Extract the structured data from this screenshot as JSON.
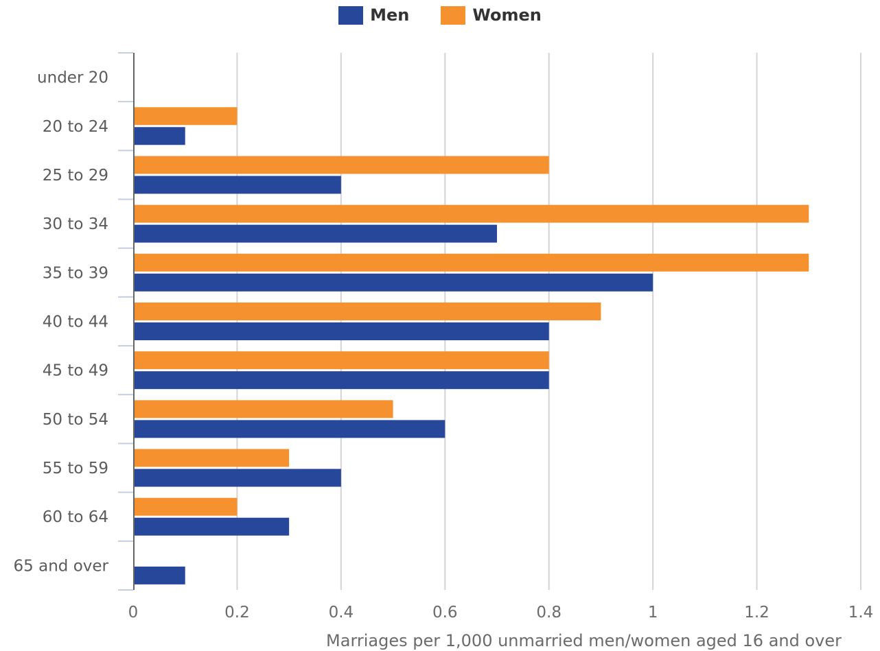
{
  "chart_data": {
    "type": "bar",
    "orientation": "horizontal",
    "categories": [
      "under 20",
      "20 to 24",
      "25 to 29",
      "30 to 34",
      "35 to 39",
      "40 to 44",
      "45 to 49",
      "50 to 54",
      "55 to 59",
      "60 to 64",
      "65 and over"
    ],
    "series": [
      {
        "name": "Women",
        "color": "#f5922f",
        "values": [
          0,
          0.2,
          0.8,
          1.3,
          1.3,
          0.9,
          0.8,
          0.5,
          0.3,
          0.2,
          0
        ]
      },
      {
        "name": "Men",
        "color": "#27489a",
        "values": [
          0,
          0.1,
          0.4,
          0.7,
          1.0,
          0.8,
          0.8,
          0.6,
          0.4,
          0.3,
          0.1
        ]
      }
    ],
    "legend_order": [
      "Men",
      "Women"
    ],
    "legend_position": "top-center",
    "xlabel": "Marriages per 1,000 unmarried men/women aged 16 and over",
    "ylabel": "",
    "xlim": [
      0,
      1.4
    ],
    "xticks": [
      "0",
      "0.2",
      "0.4",
      "0.6",
      "0.8",
      "1",
      "1.2",
      "1.4"
    ],
    "grid": "vertical"
  }
}
